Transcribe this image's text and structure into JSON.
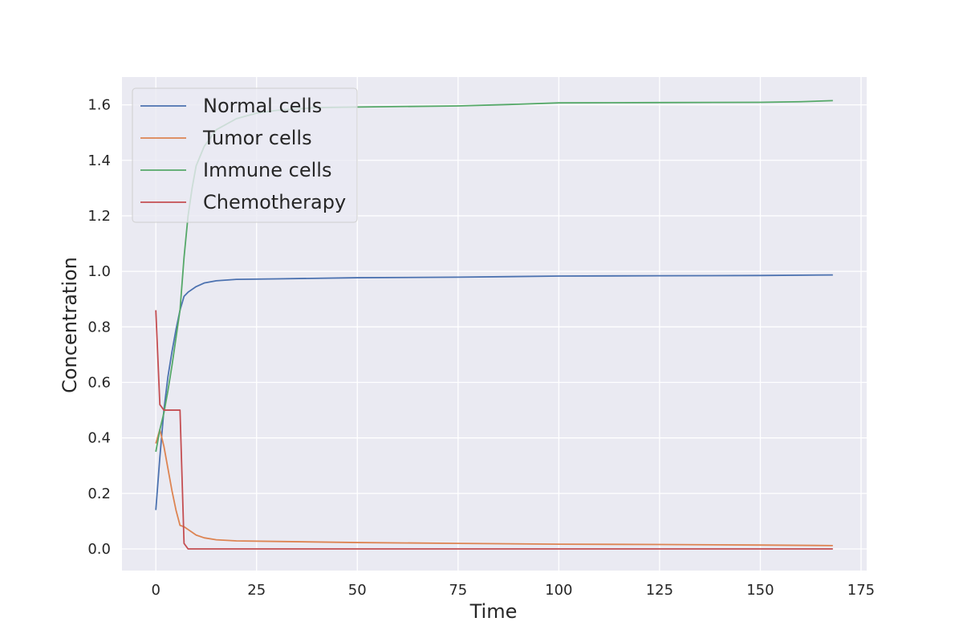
{
  "chart_data": {
    "type": "line",
    "title": "",
    "xlabel": "Time",
    "ylabel": "Concentration",
    "xlim": [
      -8.4,
      176.4
    ],
    "ylim": [
      -0.078,
      1.7
    ],
    "xticks": [
      0,
      25,
      50,
      75,
      100,
      125,
      150,
      175
    ],
    "yticks": [
      0.0,
      0.2,
      0.4,
      0.6,
      0.8,
      1.0,
      1.2,
      1.4,
      1.6
    ],
    "grid": true,
    "legend_position": "top-left",
    "style": {
      "background": "#EAEAF2",
      "grid_color": "#FFFFFF"
    },
    "series": [
      {
        "name": "Normal cells",
        "color": "#4C72B0",
        "points": [
          [
            0,
            0.14
          ],
          [
            1,
            0.33
          ],
          [
            2,
            0.5
          ],
          [
            3,
            0.62
          ],
          [
            4,
            0.71
          ],
          [
            5,
            0.79
          ],
          [
            6,
            0.86
          ],
          [
            7,
            0.91
          ],
          [
            8,
            0.925
          ],
          [
            10,
            0.945
          ],
          [
            12,
            0.958
          ],
          [
            15,
            0.966
          ],
          [
            20,
            0.971
          ],
          [
            30,
            0.973
          ],
          [
            50,
            0.977
          ],
          [
            75,
            0.979
          ],
          [
            100,
            0.983
          ],
          [
            125,
            0.984
          ],
          [
            150,
            0.985
          ],
          [
            168,
            0.987
          ]
        ]
      },
      {
        "name": "Tumor cells",
        "color": "#DD8452",
        "points": [
          [
            0,
            0.38
          ],
          [
            1,
            0.43
          ],
          [
            2,
            0.37
          ],
          [
            3,
            0.29
          ],
          [
            4,
            0.21
          ],
          [
            5,
            0.14
          ],
          [
            6,
            0.085
          ],
          [
            7,
            0.08
          ],
          [
            8,
            0.07
          ],
          [
            9,
            0.06
          ],
          [
            10,
            0.05
          ],
          [
            12,
            0.04
          ],
          [
            15,
            0.033
          ],
          [
            20,
            0.029
          ],
          [
            30,
            0.027
          ],
          [
            50,
            0.023
          ],
          [
            75,
            0.02
          ],
          [
            100,
            0.017
          ],
          [
            125,
            0.016
          ],
          [
            150,
            0.014
          ],
          [
            168,
            0.012
          ]
        ]
      },
      {
        "name": "Immune cells",
        "color": "#55A868",
        "points": [
          [
            0,
            0.35
          ],
          [
            1,
            0.43
          ],
          [
            2,
            0.49
          ],
          [
            3,
            0.57
          ],
          [
            4,
            0.66
          ],
          [
            5,
            0.76
          ],
          [
            6,
            0.86
          ],
          [
            7,
            1.05
          ],
          [
            8,
            1.2
          ],
          [
            9,
            1.3
          ],
          [
            10,
            1.38
          ],
          [
            12,
            1.45
          ],
          [
            15,
            1.51
          ],
          [
            20,
            1.55
          ],
          [
            25,
            1.57
          ],
          [
            30,
            1.58
          ],
          [
            40,
            1.59
          ],
          [
            50,
            1.592
          ],
          [
            75,
            1.596
          ],
          [
            90,
            1.602
          ],
          [
            100,
            1.607
          ],
          [
            125,
            1.608
          ],
          [
            150,
            1.609
          ],
          [
            160,
            1.611
          ],
          [
            168,
            1.615
          ]
        ]
      },
      {
        "name": "Chemotherapy",
        "color": "#C44E52",
        "points": [
          [
            0,
            0.86
          ],
          [
            1,
            0.52
          ],
          [
            2,
            0.5
          ],
          [
            6,
            0.5
          ],
          [
            7,
            0.02
          ],
          [
            8,
            0.0
          ],
          [
            168,
            0.0
          ]
        ]
      }
    ]
  }
}
